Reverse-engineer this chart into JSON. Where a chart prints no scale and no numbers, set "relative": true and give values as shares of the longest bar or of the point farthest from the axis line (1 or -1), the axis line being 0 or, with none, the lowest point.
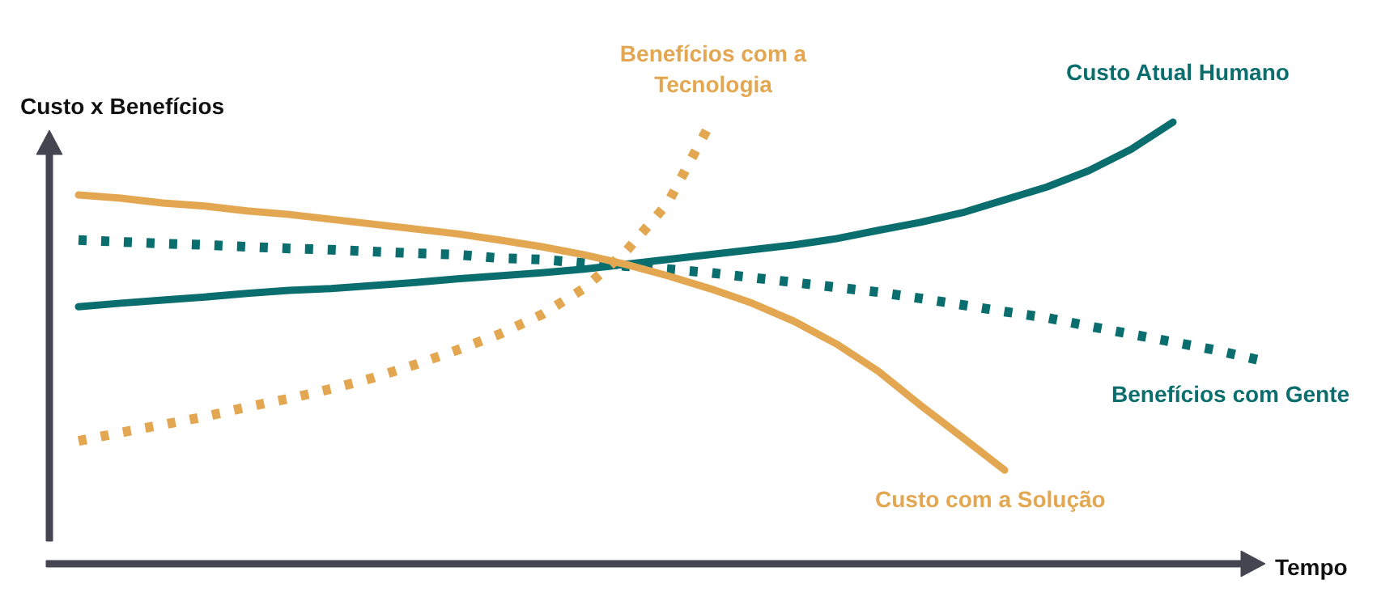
{
  "chart_data": {
    "type": "line",
    "relative": true,
    "xlabel": "Tempo",
    "ylabel": "Custo x Benefícios",
    "legend": false,
    "grid": false,
    "categories": [
      null,
      null,
      null,
      null,
      null,
      null,
      null,
      null,
      null,
      null,
      null,
      null,
      null,
      null,
      null,
      null,
      null,
      null,
      null,
      null,
      null,
      null,
      null,
      null,
      null,
      null,
      null,
      null,
      null
    ],
    "series": [
      {
        "name": "Custo Atual Humano",
        "color": "#0b6e6e",
        "line_style": "solid",
        "values": [
          0.582,
          0.59,
          0.597,
          0.604,
          0.612,
          0.619,
          0.623,
          0.63,
          0.637,
          0.645,
          0.652,
          0.659,
          0.667,
          0.678,
          0.689,
          0.7,
          0.711,
          0.722,
          0.736,
          0.755,
          0.773,
          0.795,
          0.824,
          0.853,
          0.89,
          0.938,
          1,
          null,
          null
        ]
      },
      {
        "name": "Benefícios com Gente",
        "color": "#0b6e6e",
        "line_style": "dotted",
        "values": [
          0.733,
          0.729,
          0.725,
          0.722,
          0.718,
          0.714,
          0.711,
          0.707,
          0.703,
          0.7,
          0.692,
          0.689,
          0.681,
          0.674,
          0.667,
          0.659,
          0.648,
          0.637,
          0.626,
          0.615,
          0.601,
          0.586,
          0.571,
          0.557,
          0.538,
          0.52,
          0.502,
          0.484,
          0.462
        ]
      },
      {
        "name": "Custo com a Solução",
        "color": "#e2a750",
        "line_style": "solid",
        "values": [
          0.835,
          0.828,
          0.817,
          0.81,
          0.799,
          0.791,
          0.78,
          0.769,
          0.758,
          0.747,
          0.733,
          0.718,
          0.7,
          0.678,
          0.652,
          0.623,
          0.59,
          0.549,
          0.498,
          0.436,
          0.359,
          0.286,
          0.212,
          null,
          null,
          null,
          null,
          null,
          null
        ]
      },
      {
        "name": "Benefícios com a Tecnologia",
        "color": "#e2a750",
        "line_style": "dotted",
        "values": [
          0.278,
          0.297,
          0.315,
          0.333,
          0.355,
          0.374,
          0.396,
          0.421,
          0.451,
          0.484,
          0.52,
          0.564,
          0.623,
          0.707,
          0.817,
          0.996,
          null,
          null,
          null,
          null,
          null,
          null,
          null,
          null,
          null,
          null,
          null,
          null,
          null
        ]
      }
    ]
  }
}
